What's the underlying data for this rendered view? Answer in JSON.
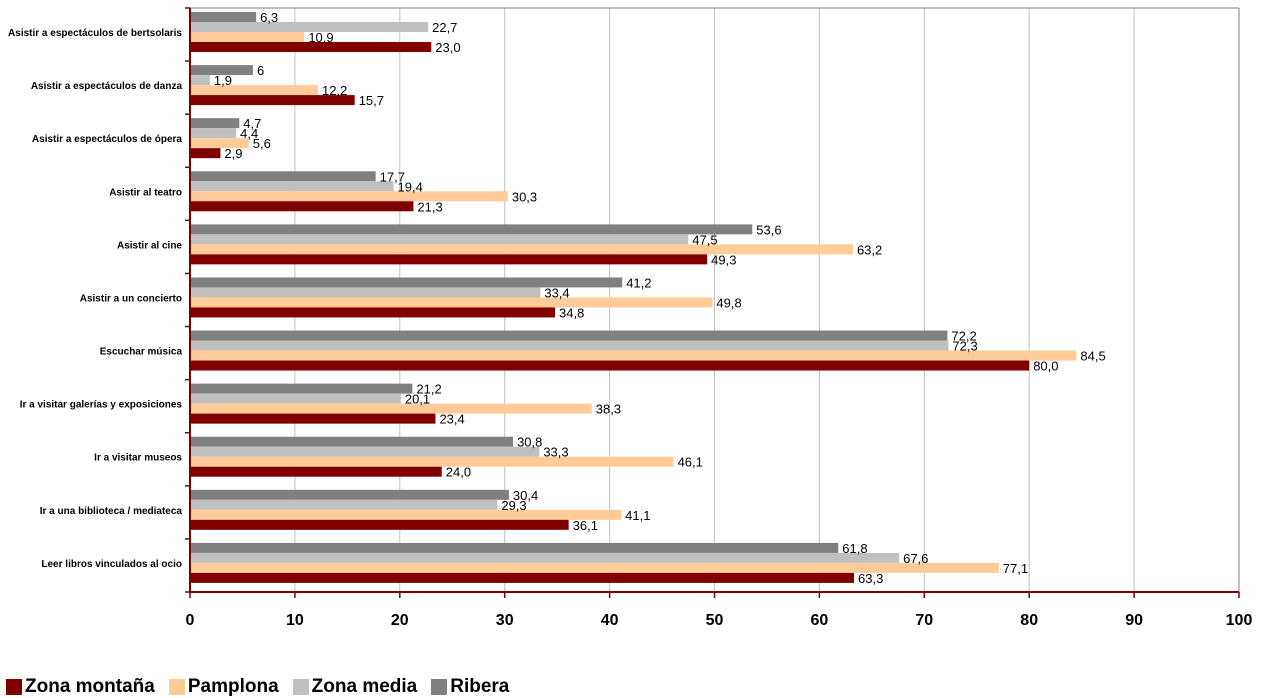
{
  "chart_data": {
    "type": "bar",
    "orientation": "horizontal",
    "categories": [
      "Asistir a espectáculos de bertsolaris",
      "Asistir a espectáculos de danza",
      "Asistir a espectáculos de ópera",
      "Asistir al teatro",
      "Asistir al cine",
      "Asistir a un concierto",
      "Escuchar música",
      "Ir a visitar galerías y exposiciones",
      "Ir a visitar museos",
      "Ir a una biblioteca / mediateca",
      "Leer libros vinculados al ocio"
    ],
    "series": [
      {
        "name": "Ribera",
        "color": "#808080",
        "values": [
          6.3,
          6,
          4.7,
          17.7,
          53.6,
          41.2,
          72.2,
          21.2,
          30.8,
          30.4,
          61.8
        ],
        "labels": [
          "6,3",
          "6",
          "4,7",
          "17,7",
          "53,6",
          "41,2",
          "72,2",
          "21,2",
          "30,8",
          "30,4",
          "61,8"
        ]
      },
      {
        "name": "Zona media",
        "color": "#c0c0c0",
        "values": [
          22.7,
          1.9,
          4.4,
          19.4,
          47.5,
          33.4,
          72.3,
          20.1,
          33.3,
          29.3,
          67.6
        ],
        "labels": [
          "22,7",
          "1,9",
          "4,4",
          "19,4",
          "47,5",
          "33,4",
          "72,3",
          "20,1",
          "33,3",
          "29,3",
          "67,6"
        ]
      },
      {
        "name": "Pamplona",
        "color": "#ffcc99",
        "values": [
          10.9,
          12.2,
          5.6,
          30.3,
          63.2,
          49.8,
          84.5,
          38.3,
          46.1,
          41.1,
          77.1
        ],
        "labels": [
          "10,9",
          "12,2",
          "5,6",
          "30,3",
          "63,2",
          "49,8",
          "84,5",
          "38,3",
          "46,1",
          "41,1",
          "77,1"
        ]
      },
      {
        "name": "Zona montaña",
        "color": "#800000",
        "values": [
          23.0,
          15.7,
          2.9,
          21.3,
          49.3,
          34.8,
          80.0,
          23.4,
          24.0,
          36.1,
          63.3
        ],
        "labels": [
          "23,0",
          "15,7",
          "2,9",
          "21,3",
          "49,3",
          "34,8",
          "80,0",
          "23,4",
          "24,0",
          "36,1",
          "63,3"
        ]
      }
    ],
    "legend_order": [
      "Zona montaña",
      "Pamplona",
      "Zona media",
      "Ribera"
    ],
    "xlim": [
      0,
      100
    ],
    "xticks": [
      "0",
      "10",
      "20",
      "30",
      "40",
      "50",
      "60",
      "70",
      "80",
      "90",
      "100"
    ],
    "grid": true,
    "axis_color": "#800000",
    "grid_color": "#c0c0c0",
    "legend_position": "bottom-left"
  }
}
